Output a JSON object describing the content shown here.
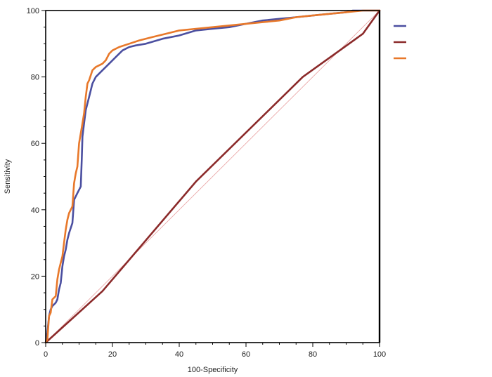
{
  "chart_data": {
    "type": "line",
    "xlabel": "100-Specificity",
    "ylabel": "Sensitivity",
    "xlim": [
      0,
      100
    ],
    "ylim": [
      0,
      100
    ],
    "x_ticks": [
      0,
      20,
      40,
      60,
      80,
      100
    ],
    "y_ticks": [
      0,
      20,
      40,
      60,
      80,
      100
    ],
    "grid": false,
    "legend_placement": "top-right",
    "reference_line": {
      "color": "#e8a0a0",
      "points": [
        [
          0,
          0
        ],
        [
          100,
          100
        ]
      ]
    },
    "series": [
      {
        "color": "#4b4fa0",
        "points": [
          [
            0,
            0
          ],
          [
            0.5,
            3
          ],
          [
            1,
            8
          ],
          [
            1.5,
            10
          ],
          [
            2,
            11
          ],
          [
            3,
            12
          ],
          [
            3.5,
            13
          ],
          [
            4,
            16
          ],
          [
            4.5,
            18
          ],
          [
            5,
            23
          ],
          [
            5.5,
            26
          ],
          [
            6,
            28
          ],
          [
            6.5,
            31
          ],
          [
            7,
            33
          ],
          [
            8,
            36
          ],
          [
            8.5,
            43
          ],
          [
            9.5,
            45
          ],
          [
            10.5,
            47
          ],
          [
            10.8,
            55
          ],
          [
            11,
            62
          ],
          [
            11.5,
            66
          ],
          [
            12,
            70
          ],
          [
            12.5,
            72
          ],
          [
            13,
            74
          ],
          [
            14,
            78
          ],
          [
            15,
            80
          ],
          [
            17,
            82
          ],
          [
            19,
            84
          ],
          [
            21,
            86
          ],
          [
            23,
            88
          ],
          [
            25,
            89
          ],
          [
            27,
            89.5
          ],
          [
            30,
            90
          ],
          [
            35,
            91.5
          ],
          [
            40,
            92.5
          ],
          [
            45,
            94
          ],
          [
            50,
            94.5
          ],
          [
            55,
            95
          ],
          [
            60,
            96
          ],
          [
            65,
            97
          ],
          [
            70,
            97.5
          ],
          [
            75,
            98
          ],
          [
            80,
            98.5
          ],
          [
            85,
            99
          ],
          [
            90,
            99.5
          ],
          [
            92,
            100
          ],
          [
            100,
            100
          ]
        ]
      },
      {
        "color": "#8b2a2a",
        "points": [
          [
            0,
            0
          ],
          [
            17,
            15.5
          ],
          [
            45,
            48.5
          ],
          [
            77,
            80
          ],
          [
            95,
            93
          ],
          [
            100,
            100
          ]
        ]
      },
      {
        "color": "#e8782a",
        "points": [
          [
            0,
            0
          ],
          [
            0.5,
            1
          ],
          [
            1,
            8
          ],
          [
            1.5,
            9
          ],
          [
            2,
            13
          ],
          [
            3,
            14
          ],
          [
            3.5,
            19
          ],
          [
            4,
            22
          ],
          [
            5,
            26
          ],
          [
            5.5,
            30
          ],
          [
            6,
            34
          ],
          [
            6.5,
            37
          ],
          [
            7,
            39
          ],
          [
            8,
            41
          ],
          [
            8.5,
            48
          ],
          [
            9,
            51
          ],
          [
            9.5,
            53
          ],
          [
            10,
            60
          ],
          [
            10.5,
            63
          ],
          [
            11,
            66
          ],
          [
            11.5,
            69
          ],
          [
            12,
            74
          ],
          [
            12.5,
            78
          ],
          [
            13,
            79
          ],
          [
            14,
            82
          ],
          [
            15,
            83
          ],
          [
            17,
            84
          ],
          [
            18,
            85
          ],
          [
            19,
            87
          ],
          [
            20,
            88
          ],
          [
            22,
            89
          ],
          [
            25,
            90
          ],
          [
            28,
            91
          ],
          [
            32,
            92
          ],
          [
            36,
            93
          ],
          [
            40,
            94
          ],
          [
            45,
            94.5
          ],
          [
            50,
            95
          ],
          [
            55,
            95.5
          ],
          [
            60,
            96
          ],
          [
            65,
            96.5
          ],
          [
            70,
            97
          ],
          [
            75,
            98
          ],
          [
            80,
            98.5
          ],
          [
            85,
            99
          ],
          [
            90,
            99.5
          ],
          [
            95,
            100
          ],
          [
            100,
            100
          ]
        ]
      }
    ]
  }
}
